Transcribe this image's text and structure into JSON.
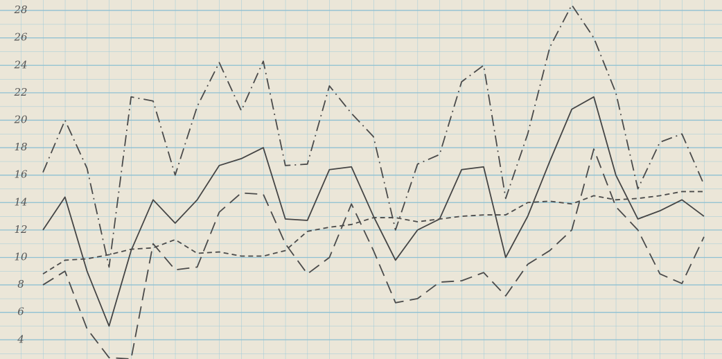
{
  "chart_data": {
    "type": "line",
    "categories": [
      null,
      null,
      null,
      null,
      null,
      null,
      null,
      null,
      null,
      null,
      null,
      null,
      null,
      null,
      null,
      null,
      null,
      null,
      null,
      null,
      null,
      null,
      null,
      null,
      null,
      null,
      null,
      null,
      null,
      null,
      null
    ],
    "series": [
      {
        "color": "#444444",
        "dash": "none",
        "values": [
          12,
          14.4,
          9,
          5,
          10.5,
          14.2,
          12.5,
          14.2,
          16.7,
          17.2,
          18,
          12.8,
          12.7,
          16.4,
          16.6,
          13,
          9.8,
          12,
          12.8,
          16.4,
          16.6,
          10,
          13,
          17,
          20.8,
          21.7,
          16,
          12.8,
          13.4,
          14.2,
          13
        ]
      },
      {
        "color": "#4a4a4a",
        "dash": "16 6 2 6",
        "values": [
          16.2,
          20,
          16.5,
          9.3,
          21.7,
          21.4,
          16,
          21,
          24.2,
          20.7,
          24.3,
          16.7,
          16.8,
          22.5,
          20.5,
          18.8,
          12,
          16.8,
          17.5,
          22.8,
          24,
          14.3,
          19,
          25.3,
          28.4,
          26,
          22,
          15,
          18.4,
          19,
          15.3
        ]
      },
      {
        "color": "#4a4a4a",
        "dash": "18 9",
        "values": [
          8,
          9,
          4.8,
          2.7,
          2.6,
          11,
          9.1,
          9.3,
          13.3,
          14.7,
          14.6,
          11,
          8.8,
          10,
          13.9,
          10.5,
          6.7,
          7,
          8.2,
          8.3,
          8.9,
          7.2,
          9.5,
          10.5,
          12,
          17.9,
          13.7,
          12,
          8.8,
          8.1,
          11.5
        ]
      },
      {
        "color": "#4a4a4a",
        "dash": "7 5",
        "values": [
          8.8,
          9.8,
          9.9,
          10.2,
          10.6,
          10.7,
          11.3,
          10.3,
          10.4,
          10.1,
          10.1,
          10.5,
          11.9,
          12.2,
          12.4,
          12.9,
          12.9,
          12.6,
          12.8,
          13,
          13.1,
          13.1,
          14,
          14.1,
          13.9,
          14.5,
          14.2,
          14.3,
          14.5,
          14.8,
          14.8
        ]
      }
    ],
    "ylim": [
      2.6,
      28.76
    ],
    "yticks": [
      4,
      6,
      8,
      10,
      12,
      14,
      16,
      18,
      20,
      22,
      24,
      26,
      28
    ],
    "grid": true
  }
}
